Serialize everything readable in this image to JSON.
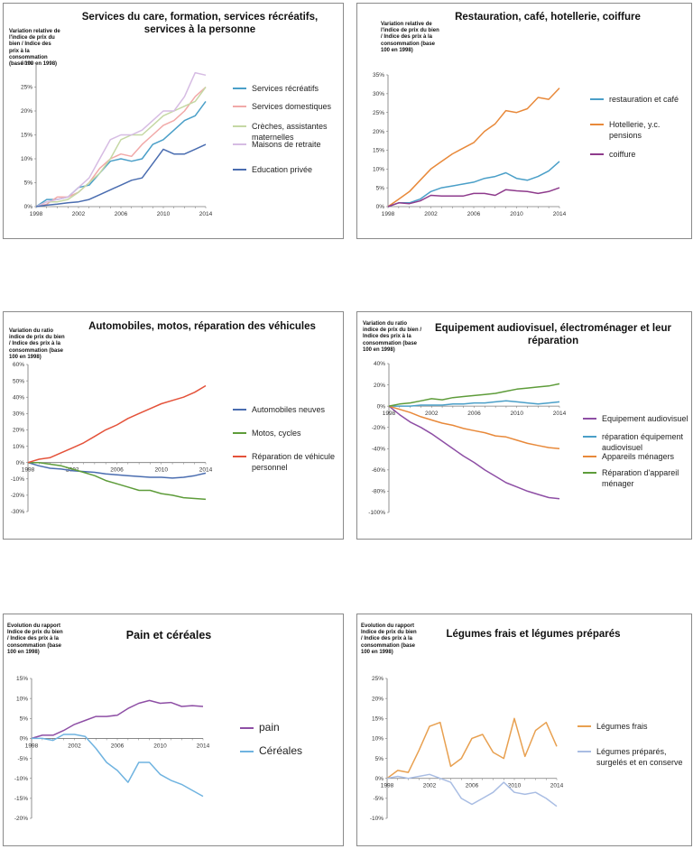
{
  "chart_data": [
    {
      "type": "line",
      "title": "Services du care, formation, services récréatifs, services à la personne",
      "ylabel": "Variation relative de l'indice de prix du bien / Indice des prix à la consommation (base 100 en 1998)",
      "ylim": [
        0,
        30
      ],
      "yticks": [
        0,
        5,
        10,
        15,
        20,
        25,
        30
      ],
      "ytick_labels": [
        "0%",
        "5%",
        "10%",
        "15%",
        "20%",
        "25%",
        "30%"
      ],
      "xticks": [
        1998,
        2002,
        2006,
        2010,
        2014
      ],
      "x": [
        1998,
        1999,
        2000,
        2001,
        2002,
        2003,
        2004,
        2005,
        2006,
        2007,
        2008,
        2009,
        2010,
        2011,
        2012,
        2013,
        2014
      ],
      "series": [
        {
          "name": "Services récréatifs",
          "color": "#4a9fc8",
          "values": [
            0,
            1.5,
            1.5,
            2,
            4,
            4.5,
            7,
            9.5,
            10,
            9.5,
            10,
            13,
            14,
            16,
            18,
            19,
            22
          ]
        },
        {
          "name": "Services domestiques",
          "color": "#f1a9a8",
          "values": [
            0,
            0.5,
            2,
            2,
            3,
            5,
            8,
            10,
            11,
            10.5,
            13,
            15,
            17,
            18,
            20,
            23,
            25
          ]
        },
        {
          "name": "Crèches, assistantes maternelles",
          "color": "#c5d8a4",
          "values": [
            0,
            1,
            1,
            1.5,
            3,
            5,
            7,
            10,
            14,
            15,
            15,
            17,
            19,
            20,
            21,
            22,
            25
          ]
        },
        {
          "name": "Maisons de retraite",
          "color": "#d6bce3",
          "values": [
            0,
            1,
            1.5,
            2,
            4,
            6,
            10,
            14,
            15,
            15,
            16,
            18,
            20,
            20,
            23,
            28,
            27.5
          ]
        },
        {
          "name": "Education privée",
          "color": "#4a6db0",
          "values": [
            0,
            0.3,
            0.5,
            0.8,
            1,
            1.5,
            2.5,
            3.5,
            4.5,
            5.5,
            6,
            9,
            12,
            11,
            11,
            12,
            13
          ]
        }
      ]
    },
    {
      "type": "line",
      "title": "Restauration, café, hotellerie, coiffure",
      "ylabel": "Variation relative de l'indice de prix du bien / Indice des prix à la consommation (base 100 en 1998)",
      "ylim": [
        0,
        35
      ],
      "yticks": [
        0,
        5,
        10,
        15,
        20,
        25,
        30,
        35
      ],
      "ytick_labels": [
        "0%",
        "5%",
        "10%",
        "15%",
        "20%",
        "25%",
        "30%",
        "35%"
      ],
      "xticks": [
        1998,
        2002,
        2006,
        2010,
        2014
      ],
      "x": [
        1998,
        1999,
        2000,
        2001,
        2002,
        2003,
        2004,
        2005,
        2006,
        2007,
        2008,
        2009,
        2010,
        2011,
        2012,
        2013,
        2014
      ],
      "series": [
        {
          "name": "restauration et café",
          "color": "#4a9fc8",
          "values": [
            0,
            1,
            1,
            2,
            4,
            5,
            5.5,
            6,
            6.5,
            7.5,
            8,
            9,
            7.5,
            7,
            8,
            9.5,
            12
          ]
        },
        {
          "name": "Hotellerie, y.c. pensions",
          "color": "#e8893a",
          "values": [
            0,
            2,
            4,
            7,
            10,
            12,
            14,
            15.5,
            17,
            20,
            22,
            25.5,
            25,
            26,
            29,
            28.5,
            31.5
          ]
        },
        {
          "name": "coiffure",
          "color": "#8e3b8c",
          "values": [
            0,
            1,
            0.8,
            1.5,
            3,
            2.8,
            2.8,
            2.8,
            3.5,
            3.5,
            3,
            4.5,
            4.2,
            4,
            3.5,
            4,
            5
          ]
        }
      ]
    },
    {
      "type": "line",
      "title": "Automobiles, motos, réparation des véhicules",
      "ylabel": "Variation du ratio indice de prix du bien / Indice des prix à la consommation (base 100 en 1998)",
      "ylim": [
        -30,
        60
      ],
      "yticks": [
        -30,
        -20,
        -10,
        0,
        10,
        20,
        30,
        40,
        50,
        60
      ],
      "ytick_labels": [
        "-30%",
        "-20%",
        "-10%",
        "0%",
        "10%",
        "20%",
        "30%",
        "40%",
        "50%",
        "60%"
      ],
      "xticks": [
        1998,
        2002,
        2006,
        2010,
        2014
      ],
      "x": [
        1998,
        1999,
        2000,
        2001,
        2002,
        2003,
        2004,
        2005,
        2006,
        2007,
        2008,
        2009,
        2010,
        2011,
        2012,
        2013,
        2014
      ],
      "series": [
        {
          "name": "Automobiles neuves",
          "color": "#4a6db0",
          "values": [
            0,
            -2,
            -3.5,
            -4,
            -5,
            -5.5,
            -6,
            -7,
            -7.5,
            -8,
            -8.5,
            -9,
            -9,
            -9.5,
            -9,
            -8,
            -6.5
          ]
        },
        {
          "name": "Motos, cycles",
          "color": "#5e9c3a",
          "values": [
            0,
            0,
            -1,
            -2,
            -4,
            -6,
            -8,
            -11,
            -13,
            -15,
            -17,
            -17,
            -19,
            -20,
            -21.5,
            -22,
            -22.5
          ]
        },
        {
          "name": "Réparation de véhicule personnel",
          "color": "#e4523a",
          "values": [
            0,
            2,
            3,
            6,
            9,
            12,
            16,
            20,
            23,
            27,
            30,
            33,
            36,
            38,
            40,
            43,
            47
          ]
        }
      ]
    },
    {
      "type": "line",
      "title": "Equipement audiovisuel, électroménager et leur réparation",
      "ylabel": "Variation du ratio indice de prix du bien / Indice des prix à la consommation (base 100 en 1998)",
      "ylim": [
        -100,
        40
      ],
      "yticks": [
        -100,
        -80,
        -60,
        -40,
        -20,
        0,
        20,
        40
      ],
      "ytick_labels": [
        "-100%",
        "-80%",
        "-60%",
        "-40%",
        "-20%",
        "0%",
        "20%",
        "40%"
      ],
      "xticks": [
        1998,
        2002,
        2006,
        2010,
        2014
      ],
      "x": [
        1998,
        1999,
        2000,
        2001,
        2002,
        2003,
        2004,
        2005,
        2006,
        2007,
        2008,
        2009,
        2010,
        2011,
        2012,
        2013,
        2014
      ],
      "series": [
        {
          "name": "Equipement audiovisuel",
          "color": "#8e4fa5",
          "values": [
            0,
            -8,
            -15,
            -20,
            -26,
            -33,
            -40,
            -47,
            -53,
            -60,
            -66,
            -72,
            -76,
            -80,
            -83,
            -86,
            -87
          ]
        },
        {
          "name": "réparation équipement audiovisuel",
          "color": "#4a9fc8",
          "values": [
            0,
            0,
            0,
            1,
            1,
            1,
            2,
            2,
            3,
            3,
            4,
            5,
            4,
            3,
            2,
            3,
            4
          ]
        },
        {
          "name": "Appareils ménagers",
          "color": "#e8893a",
          "values": [
            0,
            -3,
            -6,
            -10,
            -13,
            -16,
            -18,
            -21,
            -23,
            -25,
            -28,
            -29,
            -32,
            -35,
            -37,
            -39,
            -40
          ]
        },
        {
          "name": "Réparation d'appareil ménager",
          "color": "#5e9c3a",
          "values": [
            0,
            2,
            3,
            5,
            7,
            6,
            8,
            9,
            10,
            11,
            12,
            14,
            16,
            17,
            18,
            19,
            21
          ]
        }
      ]
    },
    {
      "type": "line",
      "title": "Pain et céréales",
      "ylabel": "Evolution du rapport Indice de prix du bien / Indice des prix à la consommation (base 100 en 1998)",
      "ylim": [
        -20,
        15
      ],
      "yticks": [
        -20,
        -15,
        -10,
        -5,
        0,
        5,
        10,
        15
      ],
      "ytick_labels": [
        "-20%",
        "-15%",
        "-10%",
        "-5%",
        "0%",
        "5%",
        "10%",
        "15%"
      ],
      "xticks": [
        1998,
        2002,
        2006,
        2010,
        2014
      ],
      "x": [
        1998,
        1999,
        2000,
        2001,
        2002,
        2003,
        2004,
        2005,
        2006,
        2007,
        2008,
        2009,
        2010,
        2011,
        2012,
        2013,
        2014
      ],
      "series": [
        {
          "name": "pain",
          "color": "#8e4fa5",
          "values": [
            0,
            0.8,
            0.8,
            2,
            3.5,
            4.5,
            5.5,
            5.5,
            5.8,
            7.5,
            8.8,
            9.5,
            8.8,
            9,
            8,
            8.2,
            8
          ]
        },
        {
          "name": "Céréales",
          "color": "#6fb3e0",
          "values": [
            0,
            0,
            -0.5,
            1,
            1,
            0.5,
            -2.5,
            -6,
            -8,
            -11,
            -6,
            -6,
            -9,
            -10.5,
            -11.5,
            -13,
            -14.5
          ]
        }
      ]
    },
    {
      "type": "line",
      "title": "Légumes frais et légumes préparés",
      "ylabel": "Evolution du rapport Indice de prix du bien / Indice des prix à la consommation (base 100 en 1998)",
      "ylim": [
        -10,
        25
      ],
      "yticks": [
        -10,
        -5,
        0,
        5,
        10,
        15,
        20,
        25
      ],
      "ytick_labels": [
        "-10%",
        "-5%",
        "0%",
        "5%",
        "10%",
        "15%",
        "20%",
        "25%"
      ],
      "xticks": [
        1998,
        2002,
        2006,
        2010,
        2014
      ],
      "x": [
        1998,
        1999,
        2000,
        2001,
        2002,
        2003,
        2004,
        2005,
        2006,
        2007,
        2008,
        2009,
        2010,
        2011,
        2012,
        2013,
        2014
      ],
      "series": [
        {
          "name": "Légumes frais",
          "color": "#e8a050",
          "values": [
            0,
            2,
            1.5,
            7,
            13,
            14,
            3,
            5,
            10,
            11,
            6.5,
            5,
            15,
            5.5,
            12,
            14,
            8
          ]
        },
        {
          "name": "Légumes préparés, surgelés et en conserve",
          "color": "#a9bde3",
          "values": [
            0,
            0.5,
            0,
            0.5,
            1,
            0,
            -1,
            -5,
            -6.5,
            -5,
            -3.5,
            -1,
            -3.5,
            -4,
            -3.5,
            -5,
            -7
          ]
        }
      ]
    }
  ]
}
